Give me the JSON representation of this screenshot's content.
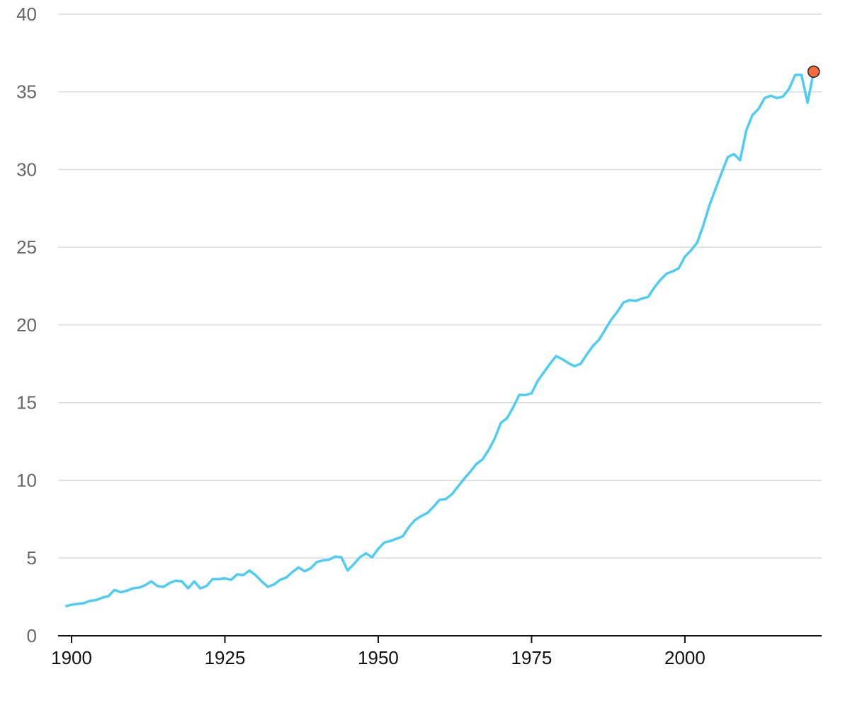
{
  "chart_data": {
    "type": "line",
    "x": [
      1899,
      1900,
      1901,
      1902,
      1903,
      1904,
      1905,
      1906,
      1907,
      1908,
      1909,
      1910,
      1911,
      1912,
      1913,
      1914,
      1915,
      1916,
      1917,
      1918,
      1919,
      1920,
      1921,
      1922,
      1923,
      1924,
      1925,
      1926,
      1927,
      1928,
      1929,
      1930,
      1931,
      1932,
      1933,
      1934,
      1935,
      1936,
      1937,
      1938,
      1939,
      1940,
      1941,
      1942,
      1943,
      1944,
      1945,
      1946,
      1947,
      1948,
      1949,
      1950,
      1951,
      1952,
      1953,
      1954,
      1955,
      1956,
      1957,
      1958,
      1959,
      1960,
      1961,
      1962,
      1963,
      1964,
      1965,
      1966,
      1967,
      1968,
      1969,
      1970,
      1971,
      1972,
      1973,
      1974,
      1975,
      1976,
      1977,
      1978,
      1979,
      1980,
      1981,
      1982,
      1983,
      1984,
      1985,
      1986,
      1987,
      1988,
      1989,
      1990,
      1991,
      1992,
      1993,
      1994,
      1995,
      1996,
      1997,
      1998,
      1999,
      2000,
      2001,
      2002,
      2003,
      2004,
      2005,
      2006,
      2007,
      2008,
      2009,
      2010,
      2011,
      2012,
      2013,
      2014,
      2015,
      2016,
      2017,
      2018,
      2019,
      2020,
      2021
    ],
    "series": [
      {
        "color": "#4dcdf6",
        "values": [
          1.9,
          2.0,
          2.05,
          2.1,
          2.25,
          2.3,
          2.45,
          2.55,
          2.95,
          2.8,
          2.9,
          3.05,
          3.1,
          3.25,
          3.5,
          3.2,
          3.15,
          3.4,
          3.55,
          3.5,
          3.05,
          3.5,
          3.05,
          3.2,
          3.65,
          3.65,
          3.7,
          3.6,
          3.95,
          3.9,
          4.2,
          3.9,
          3.5,
          3.15,
          3.3,
          3.6,
          3.75,
          4.1,
          4.4,
          4.15,
          4.35,
          4.75,
          4.85,
          4.9,
          5.1,
          5.05,
          4.2,
          4.6,
          5.05,
          5.3,
          5.05,
          5.6,
          6.0,
          6.1,
          6.25,
          6.4,
          7.0,
          7.45,
          7.7,
          7.9,
          8.3,
          8.75,
          8.8,
          9.1,
          9.6,
          10.1,
          10.55,
          11.05,
          11.35,
          11.95,
          12.7,
          13.7,
          14.0,
          14.7,
          15.5,
          15.5,
          15.6,
          16.4,
          16.95,
          17.5,
          18.0,
          17.8,
          17.55,
          17.35,
          17.5,
          18.1,
          18.65,
          19.05,
          19.7,
          20.35,
          20.85,
          21.45,
          21.6,
          21.55,
          21.7,
          21.8,
          22.4,
          22.9,
          23.3,
          23.45,
          23.65,
          24.4,
          24.8,
          25.3,
          26.4,
          27.7,
          28.75,
          29.8,
          30.8,
          31.0,
          30.6,
          32.5,
          33.5,
          33.9,
          34.6,
          34.75,
          34.6,
          34.7,
          35.2,
          36.1,
          36.1,
          34.3,
          36.3
        ]
      }
    ],
    "highlight_color": "#f26b3d",
    "xlim": [
      1897.8,
      2022.3
    ],
    "xticks": [
      1900,
      1925,
      1950,
      1975,
      2000
    ],
    "ylim": [
      0,
      40
    ],
    "yticks": [
      0,
      5,
      10,
      15,
      20,
      25,
      30,
      35,
      40
    ],
    "grid": true
  }
}
